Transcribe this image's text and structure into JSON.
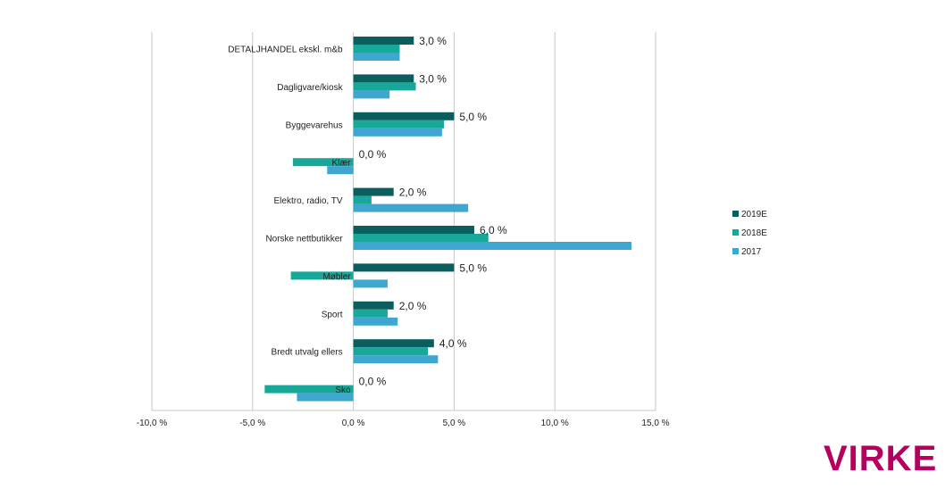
{
  "chart_data": {
    "type": "bar",
    "orientation": "horizontal",
    "categories": [
      "DETALJHANDEL ekskl. m&b",
      "Dagligvare/kiosk",
      "Byggevarehus",
      "Klær",
      "Elektro, radio, TV",
      "Norske nettbutikker",
      "Møbler",
      "Sport",
      "Bredt utvalg ellers",
      "Sko"
    ],
    "series": [
      {
        "name": "2019E",
        "color": "#0c5d5d",
        "values": [
          3.0,
          3.0,
          5.0,
          0.0,
          2.0,
          6.0,
          5.0,
          2.0,
          4.0,
          0.0
        ]
      },
      {
        "name": "2018E",
        "color": "#17a89a",
        "values": [
          2.3,
          3.1,
          4.5,
          -3.0,
          0.9,
          6.7,
          -3.1,
          1.7,
          3.7,
          -4.4
        ]
      },
      {
        "name": "2017",
        "color": "#3fa7cf",
        "values": [
          2.3,
          1.8,
          4.4,
          -1.3,
          5.7,
          13.8,
          1.7,
          2.2,
          4.2,
          -2.8
        ]
      }
    ],
    "data_labels": [
      "3,0 %",
      "3,0 %",
      "5,0 %",
      "0,0 %",
      "2,0 %",
      "6,0 %",
      "5,0 %",
      "2,0 %",
      "4,0 %",
      "0,0 %"
    ],
    "xlim": [
      -10,
      15
    ],
    "xticks": [
      -10,
      -5,
      0,
      5,
      10,
      15
    ],
    "xtick_labels": [
      "-10,0 %",
      "-5,0 %",
      "0,0 %",
      "5,0 %",
      "10,0 %",
      "15,0 %"
    ],
    "legend_position": "right",
    "grid": "vertical",
    "title": "",
    "xlabel": "",
    "ylabel": ""
  },
  "logo": {
    "text": "VIRKE",
    "color": "#b5005f"
  }
}
